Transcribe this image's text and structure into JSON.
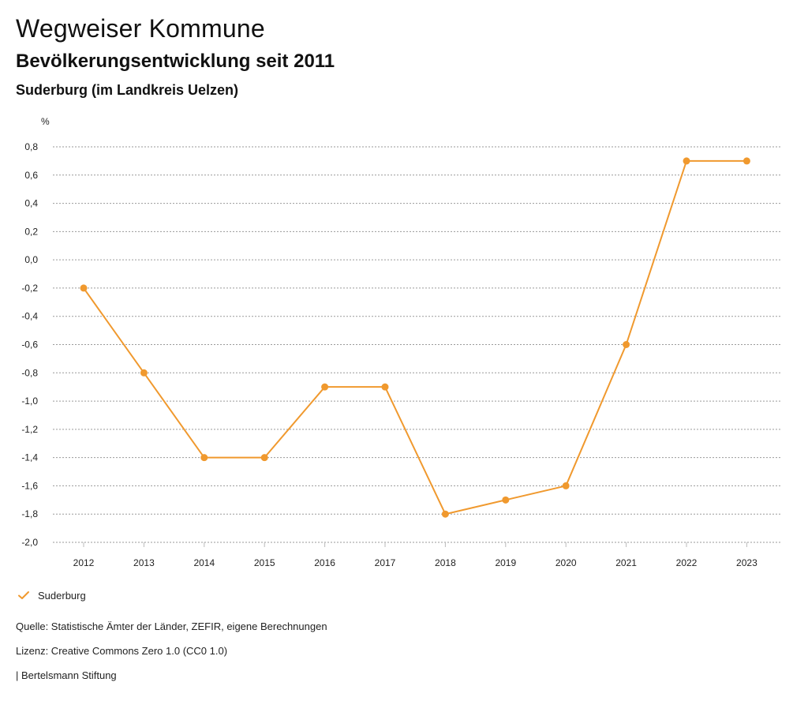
{
  "header": {
    "title": "Wegweiser Kommune",
    "subtitle": "Bevölkerungsentwicklung seit 2011",
    "region": "Suderburg (im Landkreis Uelzen)"
  },
  "chart_data": {
    "type": "line",
    "title": "Bevölkerungsentwicklung seit 2011",
    "ylabel": "%",
    "xlabel": "",
    "x": [
      "2012",
      "2013",
      "2014",
      "2015",
      "2016",
      "2017",
      "2018",
      "2019",
      "2020",
      "2021",
      "2022",
      "2023"
    ],
    "series": [
      {
        "name": "Suderburg",
        "color": "#f0992e",
        "values": [
          -0.2,
          -0.8,
          -1.4,
          -1.4,
          -0.9,
          -0.9,
          -1.8,
          -1.7,
          -1.6,
          -0.6,
          0.7,
          0.7
        ]
      }
    ],
    "ylim": [
      -2.0,
      0.8
    ],
    "yticks": [
      0.8,
      0.6,
      0.4,
      0.2,
      0.0,
      -0.2,
      -0.4,
      -0.6,
      -0.8,
      -1.0,
      -1.2,
      -1.4,
      -1.6,
      -1.8,
      -2.0
    ],
    "ytick_labels": [
      "0,8",
      "0,6",
      "0,4",
      "0,2",
      "0,0",
      "-0,2",
      "-0,4",
      "-0,6",
      "-0,8",
      "-1,0",
      "-1,2",
      "-1,4",
      "-1,6",
      "-1,8",
      "-2,0"
    ],
    "grid": true,
    "legend_position": "bottom-left"
  },
  "legend": {
    "label": "Suderburg",
    "icon": "check-icon"
  },
  "footer": {
    "source": "Quelle: Statistische Ämter der Länder, ZEFIR, eigene Berechnungen",
    "license": "Lizenz: Creative Commons Zero 1.0 (CC0 1.0)",
    "publisher": "| Bertelsmann Stiftung"
  }
}
